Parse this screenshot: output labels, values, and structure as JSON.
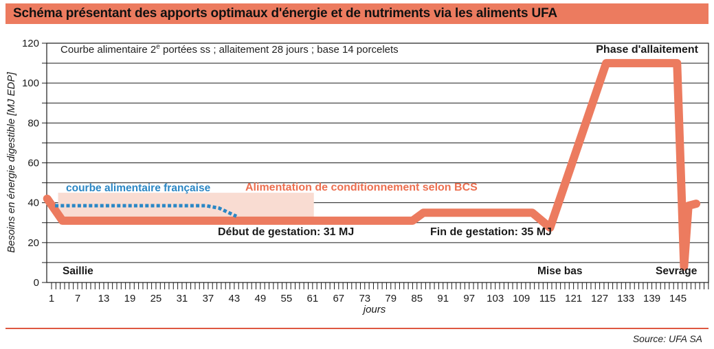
{
  "header": {
    "title": "Schéma présentant des apports optimaux d'énergie et de nutriments via les aliments UFA"
  },
  "footer": {
    "source_label": "Source: UFA SA"
  },
  "colors": {
    "accent_salmon": "#ec7b5f",
    "shade_light_pink": "#f9dcd2",
    "curve_blue": "#2b87c5",
    "footer_rule_red": "#de5740",
    "text_black": "#1a1a1a"
  },
  "chart_data": {
    "type": "line",
    "title": "Courbe alimentaire 2e portées ss ; allaitement 28 jours ; base 14 porcelets",
    "title_parts": {
      "prefix": "Courbe alimentaire 2",
      "sup": "e",
      "rest": " portées ss ; allaitement 28 jours ; base 14 porcelets"
    },
    "xlabel": "jours",
    "ylabel": "Besoins en énergie digestible [MJ EDP]",
    "xlim": [
      0,
      152
    ],
    "ylim": [
      0,
      120
    ],
    "x_ticks": [
      1,
      7,
      13,
      19,
      25,
      31,
      37,
      43,
      49,
      55,
      61,
      67,
      73,
      79,
      85,
      91,
      97,
      103,
      109,
      115,
      121,
      127,
      133,
      139,
      145
    ],
    "y_ticks": [
      0,
      20,
      40,
      60,
      80,
      100,
      120
    ],
    "grid": "horizontal lines every 10 MJ, minor day ticks every 1 jour",
    "series": [
      {
        "key": "ufa-optimal-curve",
        "name": "",
        "color": "#ec7b5f",
        "style": "solid",
        "stroke_width": 12,
        "points": [
          [
            0,
            42
          ],
          [
            3.5,
            31
          ],
          [
            84,
            31
          ],
          [
            86.5,
            35
          ],
          [
            111.5,
            35
          ],
          [
            115.6,
            27.5
          ],
          [
            128.5,
            110
          ],
          [
            144.8,
            110
          ],
          [
            146.4,
            8
          ],
          [
            147.4,
            38.5
          ],
          [
            149.2,
            39.5
          ]
        ]
      },
      {
        "key": "french-feed-curve",
        "name": "courbe alimentaire française",
        "color": "#2b87c5",
        "style": "dotted",
        "stroke_width": 5,
        "points": [
          [
            1.8,
            38.5
          ],
          [
            36.5,
            38.5
          ],
          [
            39.5,
            37.3
          ],
          [
            43.5,
            33.2
          ]
        ]
      }
    ],
    "shaded_region": {
      "label": "Alimentation de conditionnement selon BCS",
      "x_days": [
        2.5,
        61.3
      ],
      "y_mj": [
        31,
        45
      ],
      "color": "#f9dcd2"
    },
    "annotations": {
      "phase_allaitement": "Phase d'allaitement",
      "debut_gestation": "Début de gestation: 31 MJ",
      "fin_gestation": "Fin de gestation: 35 MJ",
      "saillie": "Saillie",
      "mise_bas": "Mise bas",
      "sevrage": "Sevrage"
    }
  }
}
